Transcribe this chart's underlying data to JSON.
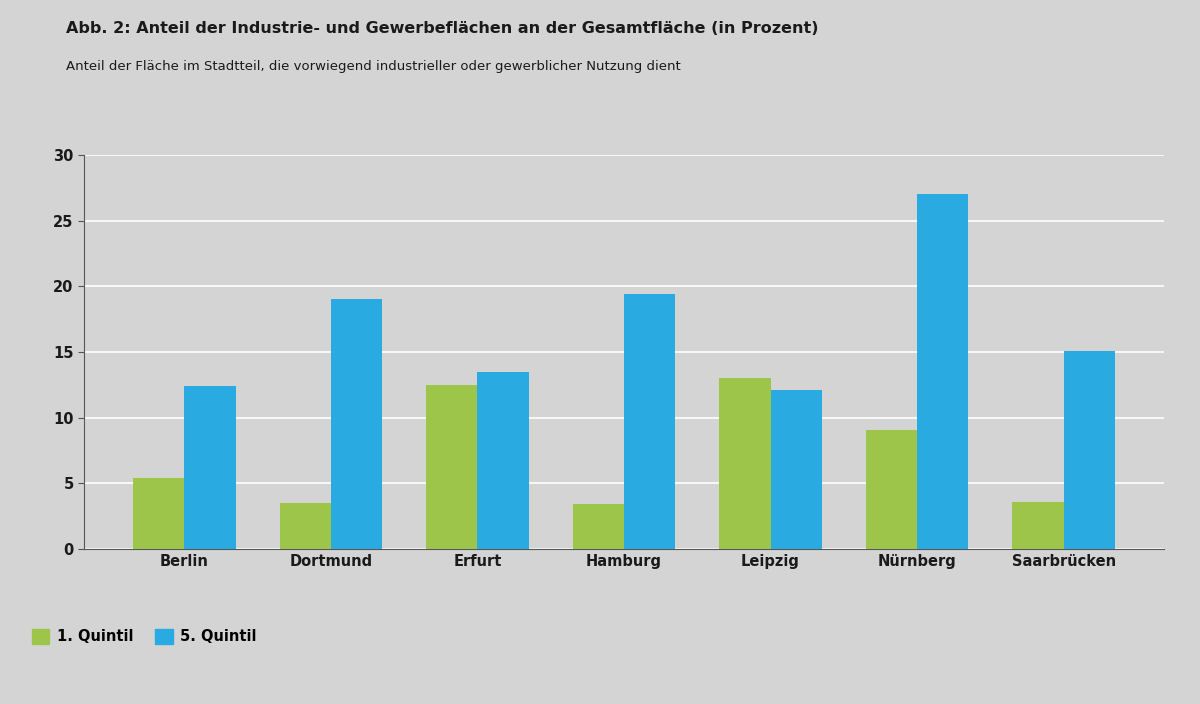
{
  "title": "Abb. 2: Anteil der Industrie- und Gewerbeflächen an der Gesamtfläche (in Prozent)",
  "subtitle": "Anteil der Fläche im Stadtteil, die vorwiegend industrieller oder gewerblicher Nutzung dient",
  "categories": [
    "Berlin",
    "Dortmund",
    "Erfurt",
    "Hamburg",
    "Leipzig",
    "Nürnberg",
    "Saarbrücken"
  ],
  "quintil1": [
    5.4,
    3.5,
    12.5,
    3.4,
    13.0,
    9.1,
    3.6
  ],
  "quintil5": [
    12.4,
    19.0,
    13.5,
    19.4,
    12.1,
    27.0,
    15.1
  ],
  "color_q1": "#9dc54a",
  "color_q5": "#29aae1",
  "background_color": "#d4d4d4",
  "ylim": [
    0,
    30
  ],
  "yticks": [
    0,
    5,
    10,
    15,
    20,
    25,
    30
  ],
  "legend_q1": "1. Quintil",
  "legend_q5": "5. Quintil",
  "title_fontsize": 11.5,
  "subtitle_fontsize": 9.5,
  "tick_fontsize": 10.5,
  "legend_fontsize": 10.5,
  "bar_width": 0.35,
  "grid_color": "#ffffff",
  "spine_color": "#555555",
  "text_color": "#1a1a1a"
}
